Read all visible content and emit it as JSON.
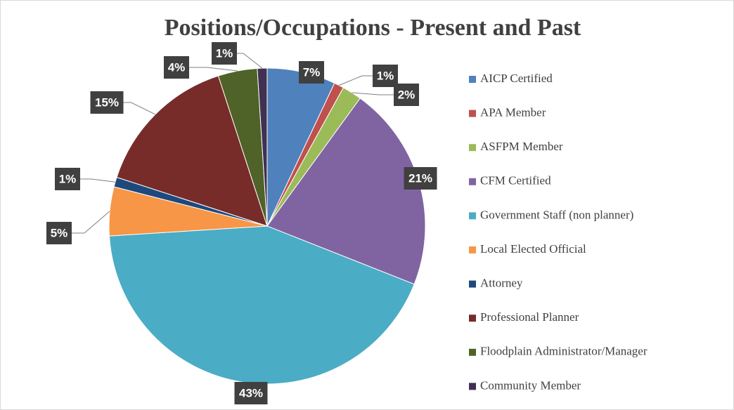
{
  "chart_data": {
    "type": "pie",
    "title": "Positions/Occupations - Present and Past",
    "categories": [
      "AICP Certified",
      "APA Member",
      "ASFPM Member",
      "CFM Certified",
      "Government Staff (non planner)",
      "Local Elected Official",
      "Attorney",
      "Professional Planner",
      "Floodplain Administrator/Manager",
      "Community Member"
    ],
    "values": [
      7,
      1,
      2,
      21,
      43,
      5,
      1,
      15,
      4,
      1
    ],
    "value_labels": [
      "7%",
      "1%",
      "2%",
      "21%",
      "43%",
      "5%",
      "1%",
      "15%",
      "4%",
      "1%"
    ],
    "colors": [
      "#4f81bd",
      "#c0504d",
      "#9bbb59",
      "#8064a2",
      "#4bacc6",
      "#f79646",
      "#1f497d",
      "#772c2a",
      "#4f6228",
      "#403152"
    ],
    "legend": "right"
  }
}
